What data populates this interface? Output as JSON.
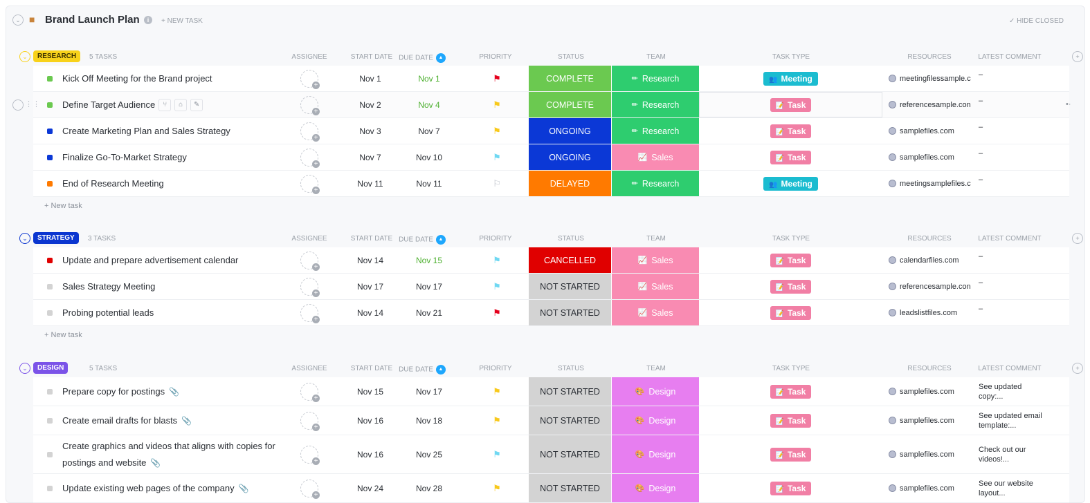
{
  "header": {
    "title": "Brand Launch Plan",
    "new_task": "+ NEW TASK",
    "hide_closed": "HIDE CLOSED"
  },
  "columns": {
    "assignee": "ASSIGNEE",
    "start": "START DATE",
    "due": "DUE DATE",
    "priority": "PRIORITY",
    "status": "STATUS",
    "team": "TEAM",
    "task_type": "TASK TYPE",
    "resources": "RESOURCES",
    "comment": "LATEST COMMENT"
  },
  "new_task_label": "+ New task",
  "colors": {
    "COMPLETE": "#6bc950",
    "ONGOING": "#0b38d6",
    "DELAYED": "#ff7a00",
    "CANCELLED": "#e00000",
    "NOT STARTED": "#d3d3d3",
    "Research": "#2ecd6f",
    "Sales": "#f98bb2",
    "Design": "#e77ef0",
    "Meeting": "#1bbcd0",
    "Task": "#f17fa5",
    "red": "#e5001c",
    "yellow": "#f8c91b",
    "cyan": "#6fd8f2",
    "gray": "#b9bec7"
  },
  "sections": [
    {
      "name": "RESEARCH",
      "count": "5 TASKS",
      "color": "#f8d21b",
      "text": "#3a3000",
      "tasks": [
        {
          "name": "Kick Off Meeting for the Brand project",
          "sq": "#6bc950",
          "start": "Nov 1",
          "due": "Nov 1",
          "due_green": true,
          "priority": "red",
          "status": "COMPLETE",
          "team": "Research",
          "type": "Meeting",
          "resource": "meetingfilessample.c",
          "comment": "–"
        },
        {
          "name": "Define Target Audience",
          "sq": "#6bc950",
          "start": "Nov 2",
          "due": "Nov 4",
          "due_green": true,
          "priority": "yellow",
          "status": "COMPLETE",
          "team": "Research",
          "type": "Task",
          "resource": "referencesample.con",
          "comment": "–",
          "hover": true
        },
        {
          "name": "Create Marketing Plan and Sales Strategy",
          "sq": "#0b38d6",
          "start": "Nov 3",
          "due": "Nov 7",
          "priority": "yellow",
          "status": "ONGOING",
          "team": "Research",
          "type": "Task",
          "resource": "samplefiles.com",
          "comment": "–"
        },
        {
          "name": "Finalize Go-To-Market Strategy",
          "sq": "#0b38d6",
          "start": "Nov 7",
          "due": "Nov 10",
          "priority": "cyan",
          "status": "ONGOING",
          "team": "Sales",
          "type": "Task",
          "resource": "samplefiles.com",
          "comment": "–"
        },
        {
          "name": "End of Research Meeting",
          "sq": "#ff7a00",
          "start": "Nov 11",
          "due": "Nov 11",
          "priority": "gray",
          "status": "DELAYED",
          "team": "Research",
          "type": "Meeting",
          "resource": "meetingsamplefiles.c",
          "comment": "–"
        }
      ]
    },
    {
      "name": "STRATEGY",
      "count": "3 TASKS",
      "color": "#0b36d0",
      "text": "#ffffff",
      "tasks": [
        {
          "name": "Update and prepare advertisement calendar",
          "sq": "#e00000",
          "start": "Nov 14",
          "due": "Nov 15",
          "due_green": true,
          "priority": "cyan",
          "status": "CANCELLED",
          "team": "Sales",
          "type": "Task",
          "resource": "calendarfiles.com",
          "comment": "–"
        },
        {
          "name": "Sales Strategy Meeting",
          "sq": "#d3d3d3",
          "start": "Nov 17",
          "due": "Nov 17",
          "priority": "cyan",
          "status": "NOT STARTED",
          "team": "Sales",
          "type": "Task",
          "resource": "referencesample.con",
          "comment": "–"
        },
        {
          "name": "Probing potential leads",
          "sq": "#d3d3d3",
          "start": "Nov 14",
          "due": "Nov 21",
          "priority": "red",
          "status": "NOT STARTED",
          "team": "Sales",
          "type": "Task",
          "resource": "leadslistfiles.com",
          "comment": "–"
        }
      ]
    },
    {
      "name": "DESIGN",
      "count": "5 TASKS",
      "color": "#7b53e8",
      "text": "#ffffff",
      "tasks": [
        {
          "name": "Prepare copy for postings",
          "clip": true,
          "sq": "#d3d3d3",
          "start": "Nov 15",
          "due": "Nov 17",
          "priority": "yellow",
          "status": "NOT STARTED",
          "team": "Design",
          "type": "Task",
          "resource": "samplefiles.com",
          "comment": "See updated copy:..."
        },
        {
          "name": "Create email drafts for blasts",
          "clip": true,
          "sq": "#d3d3d3",
          "start": "Nov 16",
          "due": "Nov 18",
          "priority": "yellow",
          "status": "NOT STARTED",
          "team": "Design",
          "type": "Task",
          "resource": "samplefiles.com",
          "comment": "See updated email template:..."
        },
        {
          "name": "Create graphics and videos that aligns with copies for postings and website",
          "clip": true,
          "sq": "#d3d3d3",
          "start": "Nov 16",
          "due": "Nov 25",
          "priority": "cyan",
          "status": "NOT STARTED",
          "team": "Design",
          "type": "Task",
          "resource": "samplefiles.com",
          "comment": "Check out our videos!...",
          "tall": true
        },
        {
          "name": "Update existing web pages of the company",
          "clip": true,
          "sq": "#d3d3d3",
          "start": "Nov 24",
          "due": "Nov 28",
          "priority": "yellow",
          "status": "NOT STARTED",
          "team": "Design",
          "type": "Task",
          "resource": "samplefiles.com",
          "comment": "See our website layout..."
        }
      ]
    }
  ]
}
